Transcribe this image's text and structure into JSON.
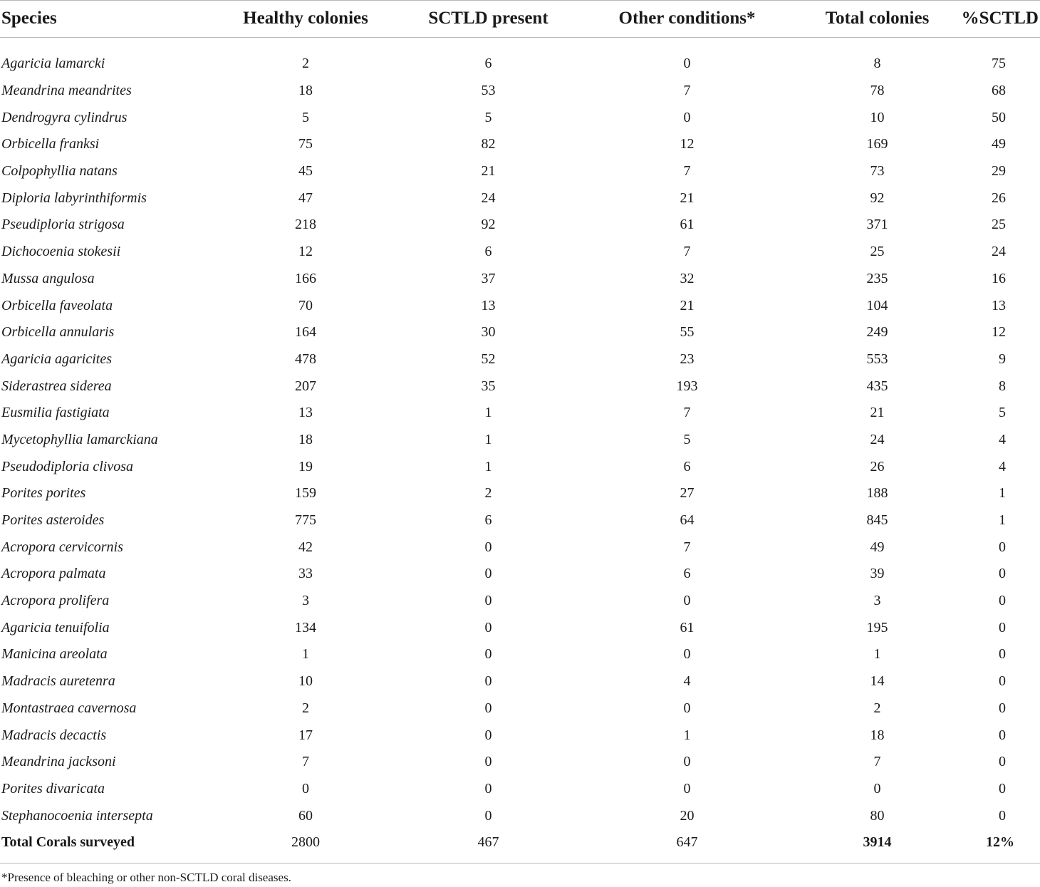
{
  "columns": [
    "Species",
    "Healthy colonies",
    "SCTLD present",
    "Other conditions*",
    "Total colonies",
    "%SCTLD"
  ],
  "rows": [
    [
      "Agaricia lamarcki",
      "2",
      "6",
      "0",
      "8",
      "75"
    ],
    [
      "Meandrina meandrites",
      "18",
      "53",
      "7",
      "78",
      "68"
    ],
    [
      "Dendrogyra cylindrus",
      "5",
      "5",
      "0",
      "10",
      "50"
    ],
    [
      "Orbicella franksi",
      "75",
      "82",
      "12",
      "169",
      "49"
    ],
    [
      "Colpophyllia natans",
      "45",
      "21",
      "7",
      "73",
      "29"
    ],
    [
      "Diploria labyrinthiformis",
      "47",
      "24",
      "21",
      "92",
      "26"
    ],
    [
      "Pseudiploria strigosa",
      "218",
      "92",
      "61",
      "371",
      "25"
    ],
    [
      "Dichocoenia stokesii",
      "12",
      "6",
      "7",
      "25",
      "24"
    ],
    [
      "Mussa angulosa",
      "166",
      "37",
      "32",
      "235",
      "16"
    ],
    [
      "Orbicella faveolata",
      "70",
      "13",
      "21",
      "104",
      "13"
    ],
    [
      "Orbicella annularis",
      "164",
      "30",
      "55",
      "249",
      "12"
    ],
    [
      "Agaricia agaricites",
      "478",
      "52",
      "23",
      "553",
      "9"
    ],
    [
      "Siderastrea siderea",
      "207",
      "35",
      "193",
      "435",
      "8"
    ],
    [
      "Eusmilia fastigiata",
      "13",
      "1",
      "7",
      "21",
      "5"
    ],
    [
      "Mycetophyllia lamarckiana",
      "18",
      "1",
      "5",
      "24",
      "4"
    ],
    [
      "Pseudodiploria clivosa",
      "19",
      "1",
      "6",
      "26",
      "4"
    ],
    [
      "Porites porites",
      "159",
      "2",
      "27",
      "188",
      "1"
    ],
    [
      "Porites asteroides",
      "775",
      "6",
      "64",
      "845",
      "1"
    ],
    [
      "Acropora cervicornis",
      "42",
      "0",
      "7",
      "49",
      "0"
    ],
    [
      "Acropora palmata",
      "33",
      "0",
      "6",
      "39",
      "0"
    ],
    [
      "Acropora prolifera",
      "3",
      "0",
      "0",
      "3",
      "0"
    ],
    [
      "Agaricia tenuifolia",
      "134",
      "0",
      "61",
      "195",
      "0"
    ],
    [
      "Manicina areolata",
      "1",
      "0",
      "0",
      "1",
      "0"
    ],
    [
      "Madracis auretenra",
      "10",
      "0",
      "4",
      "14",
      "0"
    ],
    [
      "Montastraea cavernosa",
      "2",
      "0",
      "0",
      "2",
      "0"
    ],
    [
      "Madracis decactis",
      "17",
      "0",
      "1",
      "18",
      "0"
    ],
    [
      "Meandrina jacksoni",
      "7",
      "0",
      "0",
      "7",
      "0"
    ],
    [
      "Porites divaricata",
      "0",
      "0",
      "0",
      "0",
      "0"
    ],
    [
      "Stephanocoenia intersepta",
      "60",
      "0",
      "20",
      "80",
      "0"
    ]
  ],
  "total": [
    "Total Corals surveyed",
    "2800",
    "467",
    "647",
    "3914",
    "12%"
  ],
  "footnote": "*Presence of bleaching or other non-SCTLD coral diseases."
}
